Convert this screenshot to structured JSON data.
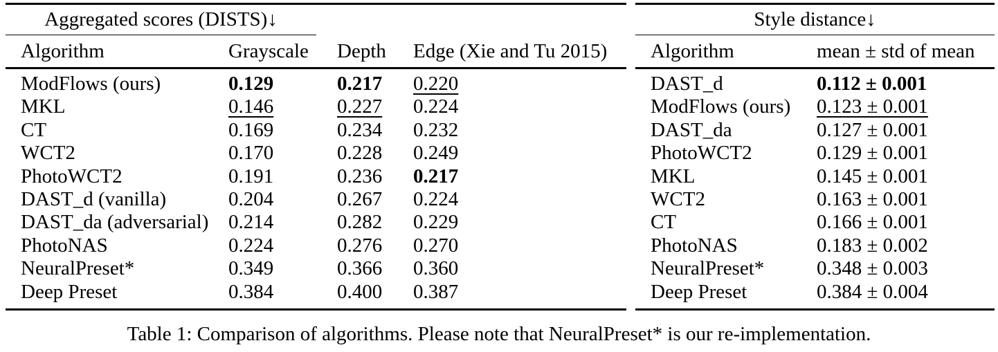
{
  "left_table": {
    "title": "Aggregated scores (DISTS)↓",
    "columns": [
      "Algorithm",
      "Grayscale",
      "Depth",
      "Edge (Xie and Tu 2015)"
    ],
    "rows": [
      {
        "algorithm": "ModFlows (ours)",
        "grayscale": "0.129",
        "depth": "0.217",
        "edge": "0.220"
      },
      {
        "algorithm": "MKL",
        "grayscale": "0.146",
        "depth": "0.227",
        "edge": "0.224"
      },
      {
        "algorithm": "CT",
        "grayscale": "0.169",
        "depth": "0.234",
        "edge": "0.232"
      },
      {
        "algorithm": "WCT2",
        "grayscale": "0.170",
        "depth": "0.228",
        "edge": "0.249"
      },
      {
        "algorithm": "PhotoWCT2",
        "grayscale": "0.191",
        "depth": "0.236",
        "edge": "0.217"
      },
      {
        "algorithm": "DAST_d (vanilla)",
        "grayscale": "0.204",
        "depth": "0.267",
        "edge": "0.224"
      },
      {
        "algorithm": "DAST_da (adversarial)",
        "grayscale": "0.214",
        "depth": "0.282",
        "edge": "0.229"
      },
      {
        "algorithm": "PhotoNAS",
        "grayscale": "0.224",
        "depth": "0.276",
        "edge": "0.270"
      },
      {
        "algorithm": "NeuralPreset*",
        "grayscale": "0.349",
        "depth": "0.366",
        "edge": "0.360"
      },
      {
        "algorithm": "Deep Preset",
        "grayscale": "0.384",
        "depth": "0.400",
        "edge": "0.387"
      }
    ]
  },
  "right_table": {
    "title": "Style distance↓",
    "columns": [
      "Algorithm",
      "mean ± std of mean"
    ],
    "rows": [
      {
        "algorithm": "DAST_d",
        "value": "0.112 ± 0.001"
      },
      {
        "algorithm": "ModFlows (ours)",
        "value": "0.123 ± 0.001"
      },
      {
        "algorithm": "DAST_da",
        "value": "0.127 ± 0.001"
      },
      {
        "algorithm": "PhotoWCT2",
        "value": "0.129 ± 0.001"
      },
      {
        "algorithm": "MKL",
        "value": "0.145 ± 0.001"
      },
      {
        "algorithm": "WCT2",
        "value": "0.163 ± 0.001"
      },
      {
        "algorithm": "CT",
        "value": "0.166 ± 0.001"
      },
      {
        "algorithm": "PhotoNAS",
        "value": "0.183 ± 0.002"
      },
      {
        "algorithm": "NeuralPreset*",
        "value": "0.348 ± 0.003"
      },
      {
        "algorithm": "Deep Preset",
        "value": "0.384 ± 0.004"
      }
    ]
  },
  "caption": "Table 1: Comparison of algorithms. Please note that NeuralPreset* is our re-implementation."
}
